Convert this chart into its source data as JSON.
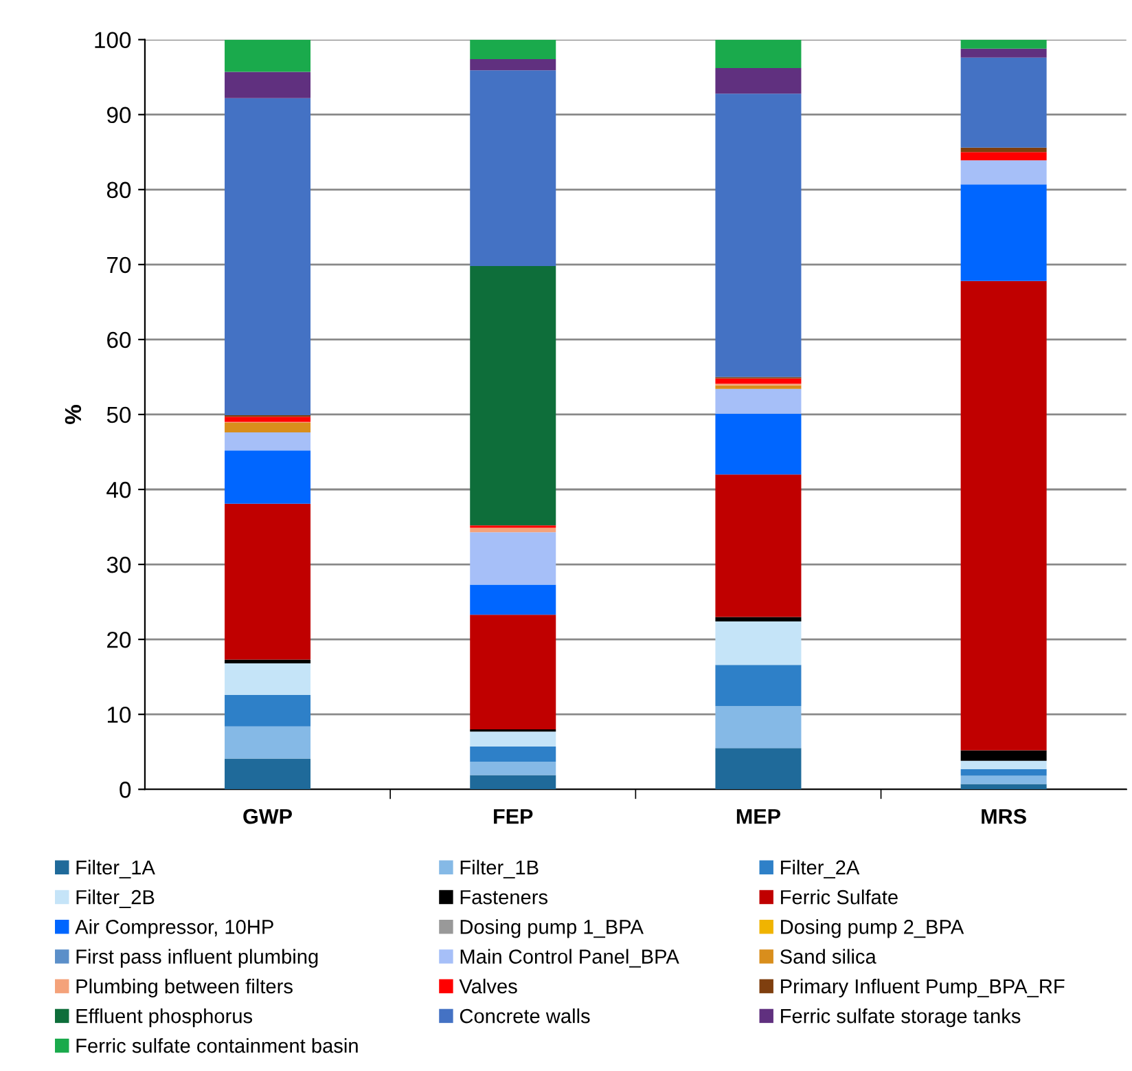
{
  "chart_data": {
    "type": "bar",
    "stacked": true,
    "ylabel": "%",
    "categories": [
      "GWP",
      "FEP",
      "MEP",
      "MRS"
    ],
    "ylim": [
      0,
      100
    ],
    "yticks": [
      0,
      10,
      20,
      30,
      40,
      50,
      60,
      70,
      80,
      90,
      100
    ],
    "grid": "y",
    "legend": "bottom",
    "series": [
      {
        "name": "Filter_1A",
        "color": "#1f6a9a",
        "values": [
          4.1,
          1.9,
          5.5,
          0.7
        ]
      },
      {
        "name": "Filter_1B",
        "color": "#85b9e6",
        "values": [
          4.3,
          1.8,
          5.6,
          1.1
        ]
      },
      {
        "name": "Filter_2A",
        "color": "#2e80c8",
        "values": [
          4.2,
          2.0,
          5.5,
          0.9
        ]
      },
      {
        "name": "Filter_2B",
        "color": "#c5e4f8",
        "values": [
          4.2,
          2.0,
          5.8,
          1.1
        ]
      },
      {
        "name": "Fasteners",
        "color": "#000000",
        "values": [
          0.5,
          0.3,
          0.6,
          1.4
        ]
      },
      {
        "name": "Ferric Sulfate",
        "color": "#c00000",
        "values": [
          20.8,
          15.3,
          19.0,
          62.6
        ]
      },
      {
        "name": "Air Compressor, 10HP",
        "color": "#0066ff",
        "values": [
          7.1,
          4.0,
          8.1,
          12.9
        ]
      },
      {
        "name": "Dosing pump 1_BPA",
        "color": "#999999",
        "values": [
          0,
          0,
          0,
          0
        ]
      },
      {
        "name": "Dosing pump 2_BPA",
        "color": "#f0b400",
        "values": [
          0,
          0,
          0,
          0
        ]
      },
      {
        "name": "First pass influent plumbing",
        "color": "#5b8fc9",
        "values": [
          0,
          0,
          0,
          0
        ]
      },
      {
        "name": "Main Control Panel_BPA",
        "color": "#a6bff8",
        "values": [
          2.4,
          7.0,
          3.3,
          3.2
        ]
      },
      {
        "name": "Sand silica",
        "color": "#d98e1c",
        "values": [
          1.3,
          0,
          0.5,
          0
        ]
      },
      {
        "name": "Plumbing between filters",
        "color": "#f4a27a",
        "values": [
          0.1,
          0.6,
          0.2,
          0
        ]
      },
      {
        "name": "Valves",
        "color": "#ff0000",
        "values": [
          0.7,
          0.3,
          0.7,
          1.1
        ]
      },
      {
        "name": "Primary Influent Pump_BPA_RF",
        "color": "#7f3f0f",
        "values": [
          0.2,
          0,
          0.2,
          0.6
        ]
      },
      {
        "name": "Effluent phosphorus",
        "color": "#0e6e3a",
        "values": [
          0,
          34.6,
          0,
          0
        ]
      },
      {
        "name": "Concrete walls",
        "color": "#4472c4",
        "values": [
          42.3,
          26.1,
          37.8,
          12.0
        ]
      },
      {
        "name": "Ferric sulfate storage tanks",
        "color": "#60307f",
        "values": [
          3.5,
          1.5,
          3.4,
          1.2
        ]
      },
      {
        "name": "Ferric sulfate containment basin",
        "color": "#1aaa4c",
        "values": [
          4.3,
          2.6,
          3.8,
          1.2
        ]
      }
    ]
  }
}
